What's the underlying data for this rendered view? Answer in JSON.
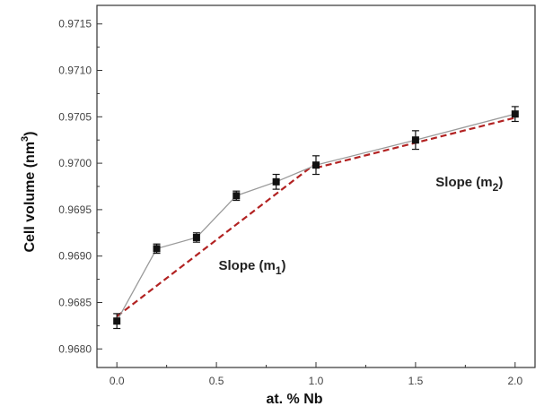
{
  "chart_data": {
    "type": "line",
    "xlabel": "at. % Nb",
    "ylabel": {
      "main": "Cell volume (nm",
      "sup": "3",
      "end": ")"
    },
    "xlim": [
      -0.1,
      2.1
    ],
    "ylim": [
      0.9678,
      0.9717
    ],
    "x_ticks": [
      0.0,
      0.5,
      1.0,
      1.5,
      2.0
    ],
    "x_tick_labels": [
      "0.0",
      "0.5",
      "1.0",
      "1.5",
      "2.0"
    ],
    "y_ticks": [
      0.968,
      0.9685,
      0.969,
      0.9695,
      0.97,
      0.9705,
      0.971,
      0.9715
    ],
    "y_tick_labels": [
      "0.9680",
      "0.9685",
      "0.9690",
      "0.9695",
      "0.9700",
      "0.9705",
      "0.9710",
      "0.9715"
    ],
    "grid": false,
    "series": [
      {
        "x": [
          0.0,
          0.2,
          0.4,
          0.6,
          0.8,
          1.0,
          1.5,
          2.0
        ],
        "y": [
          0.9683,
          0.96908,
          0.9692,
          0.96965,
          0.9698,
          0.96998,
          0.97025,
          0.97053
        ],
        "error": [
          8e-05,
          5e-05,
          5e-05,
          5e-05,
          8e-05,
          0.0001,
          0.0001,
          8e-05
        ],
        "marker": "square",
        "line_color": "#9a9a9a",
        "marker_color": "#111111"
      }
    ],
    "fits": [
      {
        "x": [
          0.0,
          1.0
        ],
        "y": [
          0.96835,
          0.97
        ],
        "color": "#b22222",
        "style": "dashed"
      },
      {
        "x": [
          1.0,
          2.0
        ],
        "y": [
          0.96995,
          0.97049
        ],
        "color": "#b22222",
        "style": "dashed"
      }
    ],
    "annotations": [
      {
        "text": "Slope (m",
        "sub": "1",
        "end": ")",
        "x": 0.68,
        "y": 0.96885
      },
      {
        "text": "Slope (m",
        "sub": "2",
        "end": ")",
        "x": 1.77,
        "y": 0.96975
      }
    ]
  }
}
